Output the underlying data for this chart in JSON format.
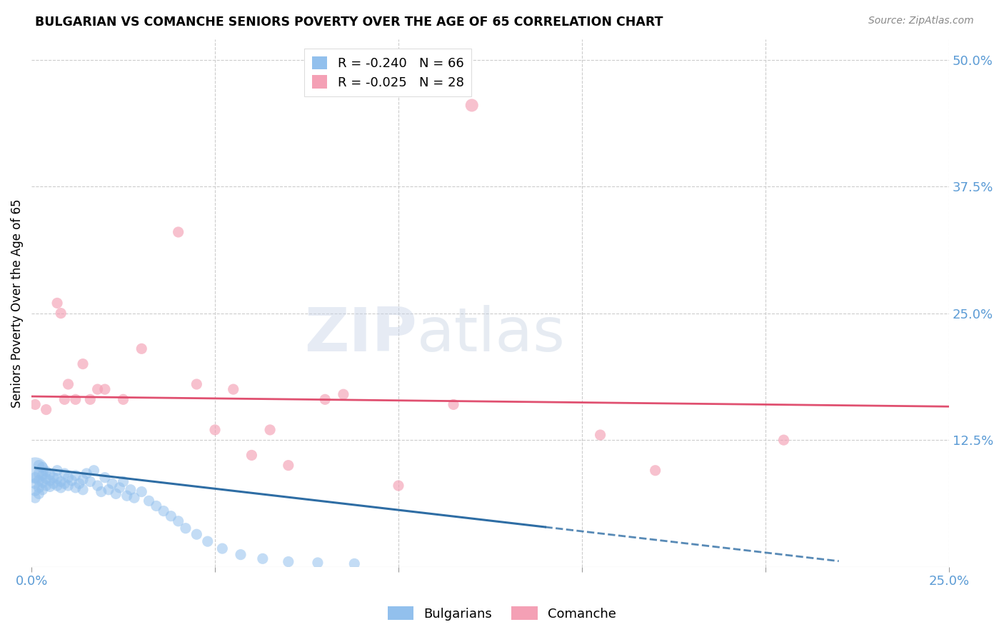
{
  "title": "BULGARIAN VS COMANCHE SENIORS POVERTY OVER THE AGE OF 65 CORRELATION CHART",
  "source": "Source: ZipAtlas.com",
  "ylabel": "Seniors Poverty Over the Age of 65",
  "xlim": [
    0.0,
    0.25
  ],
  "ylim": [
    0.0,
    0.52
  ],
  "xticks": [
    0.0,
    0.05,
    0.1,
    0.15,
    0.2,
    0.25
  ],
  "xtick_labels": [
    "0.0%",
    "",
    "",
    "",
    "",
    "25.0%"
  ],
  "ytick_positions": [
    0.125,
    0.25,
    0.375,
    0.5
  ],
  "ytick_labels": [
    "12.5%",
    "25.0%",
    "37.5%",
    "50.0%"
  ],
  "legend_entries": [
    {
      "label": "R = -0.240   N = 66",
      "color": "#92c0ed"
    },
    {
      "label": "R = -0.025   N = 28",
      "color": "#f4a0b5"
    }
  ],
  "watermark_zip": "ZIP",
  "watermark_atlas": "atlas",
  "bulgarian_color": "#92c0ed",
  "comanche_color": "#f4a0b5",
  "bulgarian_line_color": "#2e6da4",
  "comanche_line_color": "#e05070",
  "bulgarian_x": [
    0.001,
    0.001,
    0.001,
    0.001,
    0.001,
    0.002,
    0.002,
    0.002,
    0.002,
    0.002,
    0.003,
    0.003,
    0.003,
    0.003,
    0.004,
    0.004,
    0.004,
    0.005,
    0.005,
    0.005,
    0.006,
    0.006,
    0.007,
    0.007,
    0.007,
    0.008,
    0.008,
    0.009,
    0.009,
    0.01,
    0.01,
    0.011,
    0.012,
    0.012,
    0.013,
    0.014,
    0.014,
    0.015,
    0.016,
    0.017,
    0.018,
    0.019,
    0.02,
    0.021,
    0.022,
    0.023,
    0.024,
    0.025,
    0.026,
    0.027,
    0.028,
    0.03,
    0.032,
    0.034,
    0.036,
    0.038,
    0.04,
    0.042,
    0.045,
    0.048,
    0.052,
    0.057,
    0.063,
    0.07,
    0.078,
    0.088
  ],
  "bulgarian_y": [
    0.095,
    0.088,
    0.082,
    0.075,
    0.068,
    0.1,
    0.092,
    0.085,
    0.078,
    0.072,
    0.098,
    0.09,
    0.083,
    0.076,
    0.094,
    0.087,
    0.08,
    0.091,
    0.085,
    0.079,
    0.088,
    0.082,
    0.095,
    0.087,
    0.08,
    0.084,
    0.078,
    0.092,
    0.082,
    0.088,
    0.08,
    0.085,
    0.09,
    0.078,
    0.082,
    0.086,
    0.076,
    0.092,
    0.084,
    0.095,
    0.08,
    0.074,
    0.088,
    0.076,
    0.082,
    0.072,
    0.078,
    0.084,
    0.07,
    0.076,
    0.068,
    0.074,
    0.065,
    0.06,
    0.055,
    0.05,
    0.045,
    0.038,
    0.032,
    0.025,
    0.018,
    0.012,
    0.008,
    0.005,
    0.004,
    0.003
  ],
  "bulgarian_sizes": [
    700,
    120,
    120,
    120,
    120,
    120,
    120,
    120,
    120,
    120,
    120,
    120,
    120,
    120,
    120,
    120,
    120,
    120,
    120,
    120,
    120,
    120,
    120,
    120,
    120,
    120,
    120,
    120,
    120,
    120,
    120,
    120,
    120,
    120,
    120,
    120,
    120,
    120,
    120,
    120,
    120,
    120,
    120,
    120,
    120,
    120,
    120,
    120,
    120,
    120,
    120,
    120,
    120,
    120,
    120,
    120,
    120,
    120,
    120,
    120,
    120,
    120,
    120,
    120,
    120,
    120
  ],
  "comanche_x": [
    0.001,
    0.004,
    0.007,
    0.008,
    0.009,
    0.01,
    0.012,
    0.014,
    0.016,
    0.018,
    0.02,
    0.025,
    0.03,
    0.04,
    0.045,
    0.05,
    0.055,
    0.06,
    0.065,
    0.07,
    0.08,
    0.085,
    0.1,
    0.115,
    0.12,
    0.155,
    0.17,
    0.205
  ],
  "comanche_y": [
    0.16,
    0.155,
    0.26,
    0.25,
    0.165,
    0.18,
    0.165,
    0.2,
    0.165,
    0.175,
    0.175,
    0.165,
    0.215,
    0.33,
    0.18,
    0.135,
    0.175,
    0.11,
    0.135,
    0.1,
    0.165,
    0.17,
    0.08,
    0.16,
    0.455,
    0.13,
    0.095,
    0.125
  ],
  "comanche_sizes": [
    120,
    120,
    120,
    120,
    120,
    120,
    120,
    120,
    120,
    120,
    120,
    120,
    120,
    120,
    120,
    120,
    120,
    120,
    120,
    120,
    120,
    120,
    120,
    120,
    170,
    120,
    120,
    120
  ],
  "bulgarian_line_x": [
    0.0,
    0.14
  ],
  "bulgarian_line_y_intercept": 0.098,
  "bulgarian_line_slope": -0.42,
  "comanche_line_x": [
    0.0,
    0.25
  ],
  "comanche_line_y_intercept": 0.168,
  "comanche_line_slope": -0.04
}
